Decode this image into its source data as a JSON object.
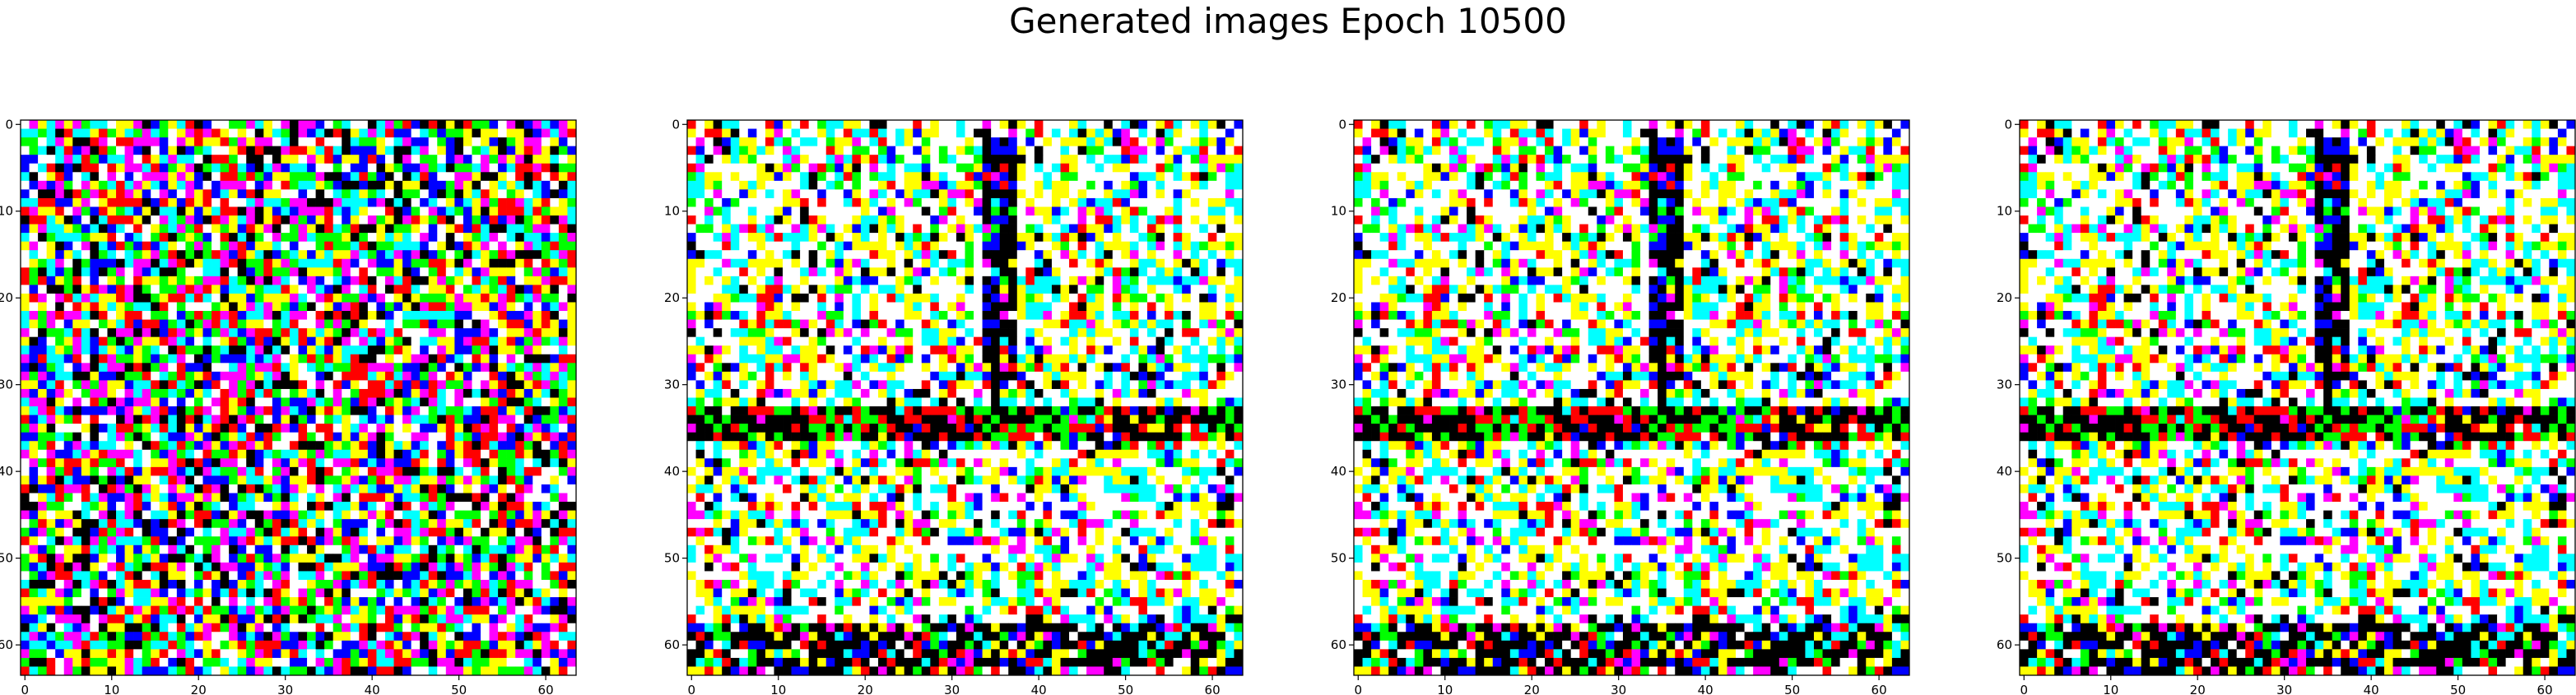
{
  "figure": {
    "title": "Generated images Epoch 10500"
  },
  "palette": [
    "#ffffff",
    "#000000",
    "#ff0000",
    "#00ff00",
    "#0000ff",
    "#ffff00",
    "#00ffff",
    "#ff00ff"
  ],
  "chart_data": [
    {
      "type": "heatmap",
      "grid_size": 64,
      "xlim": [
        0,
        63
      ],
      "ylim": [
        63,
        0
      ],
      "x_ticks": [
        0,
        10,
        20,
        30,
        40,
        50,
        60
      ],
      "y_ticks": [
        0,
        10,
        20,
        30,
        40,
        50,
        60
      ],
      "xlabel": "",
      "ylabel": "",
      "pattern": "random-noise",
      "seed": 11
    },
    {
      "type": "heatmap",
      "grid_size": 64,
      "xlim": [
        0,
        63
      ],
      "ylim": [
        63,
        0
      ],
      "x_ticks": [
        0,
        10,
        20,
        30,
        40,
        50,
        60
      ],
      "y_ticks": [
        0,
        10,
        20,
        30,
        40,
        50,
        60
      ],
      "xlabel": "",
      "ylabel": "",
      "pattern": "structured-noise",
      "seed": 23
    },
    {
      "type": "heatmap",
      "grid_size": 64,
      "xlim": [
        0,
        63
      ],
      "ylim": [
        63,
        0
      ],
      "x_ticks": [
        0,
        10,
        20,
        30,
        40,
        50,
        60
      ],
      "y_ticks": [
        0,
        10,
        20,
        30,
        40,
        50,
        60
      ],
      "xlabel": "",
      "ylabel": "",
      "pattern": "structured-noise",
      "seed": 23
    },
    {
      "type": "heatmap",
      "grid_size": 64,
      "xlim": [
        0,
        63
      ],
      "ylim": [
        63,
        0
      ],
      "x_ticks": [
        0,
        10,
        20,
        30,
        40,
        50,
        60
      ],
      "y_ticks": [
        0,
        10,
        20,
        30,
        40,
        50,
        60
      ],
      "xlabel": "",
      "ylabel": "",
      "pattern": "structured-noise",
      "seed": 23
    }
  ]
}
